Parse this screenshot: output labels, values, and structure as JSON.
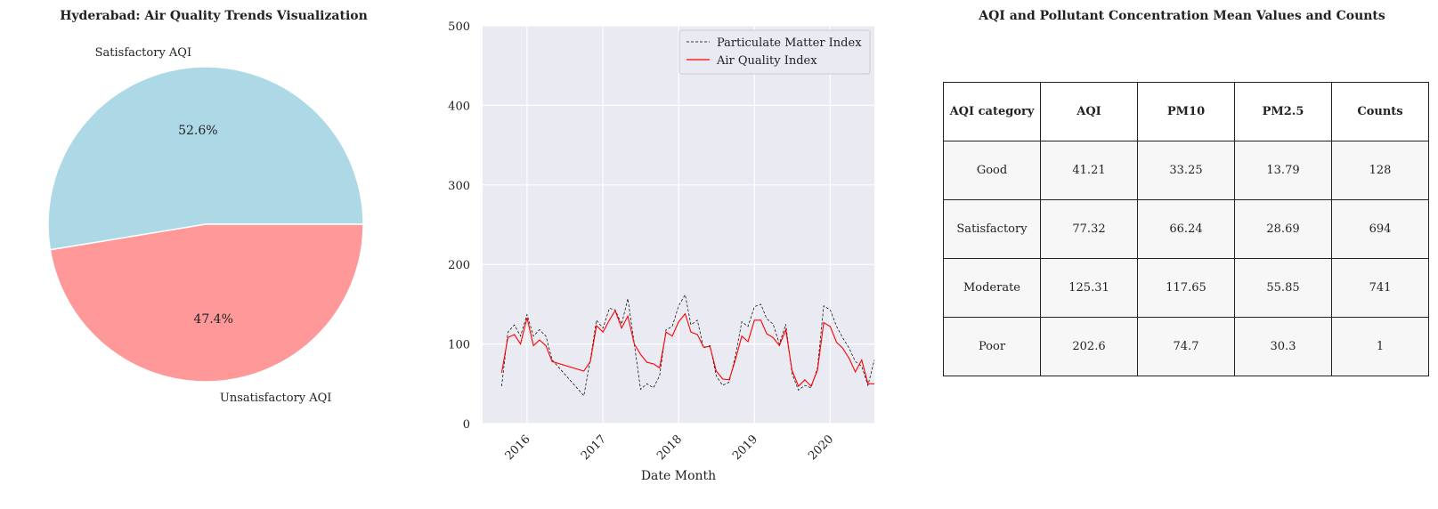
{
  "chart_data": [
    {
      "type": "pie",
      "title": "Hyderabad: Air Quality Trends Visualization",
      "labels": [
        "Satisfactory AQI",
        "Unsatisfactory AQI"
      ],
      "values": [
        52.6,
        47.4
      ],
      "value_labels": [
        "52.6%",
        "47.4%"
      ],
      "colors": [
        "#add8e6",
        "#ff9999"
      ],
      "start_angle_deg": 0,
      "direction": "counterclockwise"
    },
    {
      "type": "line",
      "title": "",
      "xlabel": "Date Month",
      "ylabel": "",
      "ylim": [
        0,
        500
      ],
      "xlim": [
        "2015-06-01",
        "2020-08-01"
      ],
      "y_ticks": [
        "0",
        "100",
        "200",
        "300",
        "400",
        "500"
      ],
      "x_ticks": [
        "2016",
        "2017",
        "2018",
        "2019",
        "2020"
      ],
      "x_tick_dates": [
        "2016-01-01",
        "2017-01-01",
        "2018-01-01",
        "2019-01-01",
        "2020-01-01"
      ],
      "grid": true,
      "legend_position": "top-right",
      "background": "#eaeaf2",
      "series": [
        {
          "name": "Particulate Matter Index",
          "color": "#000000",
          "style": "dashed",
          "points": [
            [
              "2015-09-01",
              47
            ],
            [
              "2015-10-01",
              115
            ],
            [
              "2015-11-01",
              124
            ],
            [
              "2015-12-01",
              110
            ],
            [
              "2016-01-01",
              137
            ],
            [
              "2016-02-01",
              110
            ],
            [
              "2016-03-01",
              118
            ],
            [
              "2016-04-01",
              110
            ],
            [
              "2016-05-01",
              80
            ],
            [
              "2016-10-01",
              35
            ],
            [
              "2016-11-01",
              80
            ],
            [
              "2016-12-01",
              130
            ],
            [
              "2017-01-01",
              120
            ],
            [
              "2017-02-01",
              145
            ],
            [
              "2017-03-01",
              143
            ],
            [
              "2017-04-01",
              125
            ],
            [
              "2017-05-01",
              157
            ],
            [
              "2017-06-01",
              100
            ],
            [
              "2017-07-01",
              43
            ],
            [
              "2017-08-01",
              50
            ],
            [
              "2017-09-01",
              45
            ],
            [
              "2017-10-01",
              60
            ],
            [
              "2017-11-01",
              118
            ],
            [
              "2017-12-01",
              122
            ],
            [
              "2018-01-01",
              148
            ],
            [
              "2018-02-01",
              162
            ],
            [
              "2018-03-01",
              124
            ],
            [
              "2018-04-01",
              130
            ],
            [
              "2018-05-01",
              95
            ],
            [
              "2018-06-01",
              98
            ],
            [
              "2018-07-01",
              60
            ],
            [
              "2018-08-01",
              48
            ],
            [
              "2018-09-01",
              52
            ],
            [
              "2018-10-01",
              85
            ],
            [
              "2018-11-01",
              128
            ],
            [
              "2018-12-01",
              122
            ],
            [
              "2019-01-01",
              147
            ],
            [
              "2019-02-01",
              150
            ],
            [
              "2019-03-01",
              132
            ],
            [
              "2019-04-01",
              125
            ],
            [
              "2019-05-01",
              100
            ],
            [
              "2019-06-01",
              125
            ],
            [
              "2019-07-01",
              63
            ],
            [
              "2019-08-01",
              42
            ],
            [
              "2019-09-01",
              48
            ],
            [
              "2019-10-01",
              45
            ],
            [
              "2019-11-01",
              70
            ],
            [
              "2019-12-01",
              148
            ],
            [
              "2020-01-01",
              143
            ],
            [
              "2020-02-01",
              122
            ],
            [
              "2020-03-01",
              108
            ],
            [
              "2020-04-01",
              95
            ],
            [
              "2020-05-01",
              78
            ],
            [
              "2020-06-01",
              72
            ],
            [
              "2020-07-01",
              48
            ],
            [
              "2020-08-01",
              80
            ]
          ]
        },
        {
          "name": "Air Quality Index",
          "color": "#ff0000",
          "style": "solid",
          "points": [
            [
              "2015-09-01",
              64
            ],
            [
              "2015-10-01",
              108
            ],
            [
              "2015-11-01",
              112
            ],
            [
              "2015-12-01",
              100
            ],
            [
              "2016-01-01",
              133
            ],
            [
              "2016-02-01",
              98
            ],
            [
              "2016-03-01",
              105
            ],
            [
              "2016-04-01",
              98
            ],
            [
              "2016-05-01",
              78
            ],
            [
              "2016-10-01",
              66
            ],
            [
              "2016-11-01",
              78
            ],
            [
              "2016-12-01",
              123
            ],
            [
              "2017-01-01",
              115
            ],
            [
              "2017-02-01",
              130
            ],
            [
              "2017-03-01",
              142
            ],
            [
              "2017-04-01",
              120
            ],
            [
              "2017-05-01",
              135
            ],
            [
              "2017-06-01",
              100
            ],
            [
              "2017-07-01",
              87
            ],
            [
              "2017-08-01",
              77
            ],
            [
              "2017-09-01",
              75
            ],
            [
              "2017-10-01",
              70
            ],
            [
              "2017-11-01",
              115
            ],
            [
              "2017-12-01",
              110
            ],
            [
              "2018-01-01",
              128
            ],
            [
              "2018-02-01",
              138
            ],
            [
              "2018-03-01",
              115
            ],
            [
              "2018-04-01",
              112
            ],
            [
              "2018-05-01",
              96
            ],
            [
              "2018-06-01",
              97
            ],
            [
              "2018-07-01",
              66
            ],
            [
              "2018-08-01",
              56
            ],
            [
              "2018-09-01",
              55
            ],
            [
              "2018-10-01",
              80
            ],
            [
              "2018-11-01",
              110
            ],
            [
              "2018-12-01",
              103
            ],
            [
              "2019-01-01",
              130
            ],
            [
              "2019-02-01",
              130
            ],
            [
              "2019-03-01",
              113
            ],
            [
              "2019-04-01",
              108
            ],
            [
              "2019-05-01",
              98
            ],
            [
              "2019-06-01",
              118
            ],
            [
              "2019-07-01",
              67
            ],
            [
              "2019-08-01",
              47
            ],
            [
              "2019-09-01",
              55
            ],
            [
              "2019-10-01",
              47
            ],
            [
              "2019-11-01",
              67
            ],
            [
              "2019-12-01",
              127
            ],
            [
              "2020-01-01",
              122
            ],
            [
              "2020-02-01",
              102
            ],
            [
              "2020-03-01",
              95
            ],
            [
              "2020-04-01",
              82
            ],
            [
              "2020-05-01",
              65
            ],
            [
              "2020-06-01",
              80
            ],
            [
              "2020-07-01",
              50
            ],
            [
              "2020-08-01",
              50
            ]
          ]
        }
      ]
    },
    {
      "type": "table",
      "title": "AQI and Pollutant Concentration Mean Values and Counts",
      "columns": [
        "AQI category",
        "AQI",
        "PM10",
        "PM2.5",
        "Counts"
      ],
      "rows": [
        [
          "Good",
          "41.21",
          "33.25",
          "13.79",
          "128"
        ],
        [
          "Satisfactory",
          "77.32",
          "66.24",
          "28.69",
          "694"
        ],
        [
          "Moderate",
          "125.31",
          "117.65",
          "55.85",
          "741"
        ],
        [
          "Poor",
          "202.6",
          "74.7",
          "30.3",
          "1"
        ]
      ]
    }
  ]
}
